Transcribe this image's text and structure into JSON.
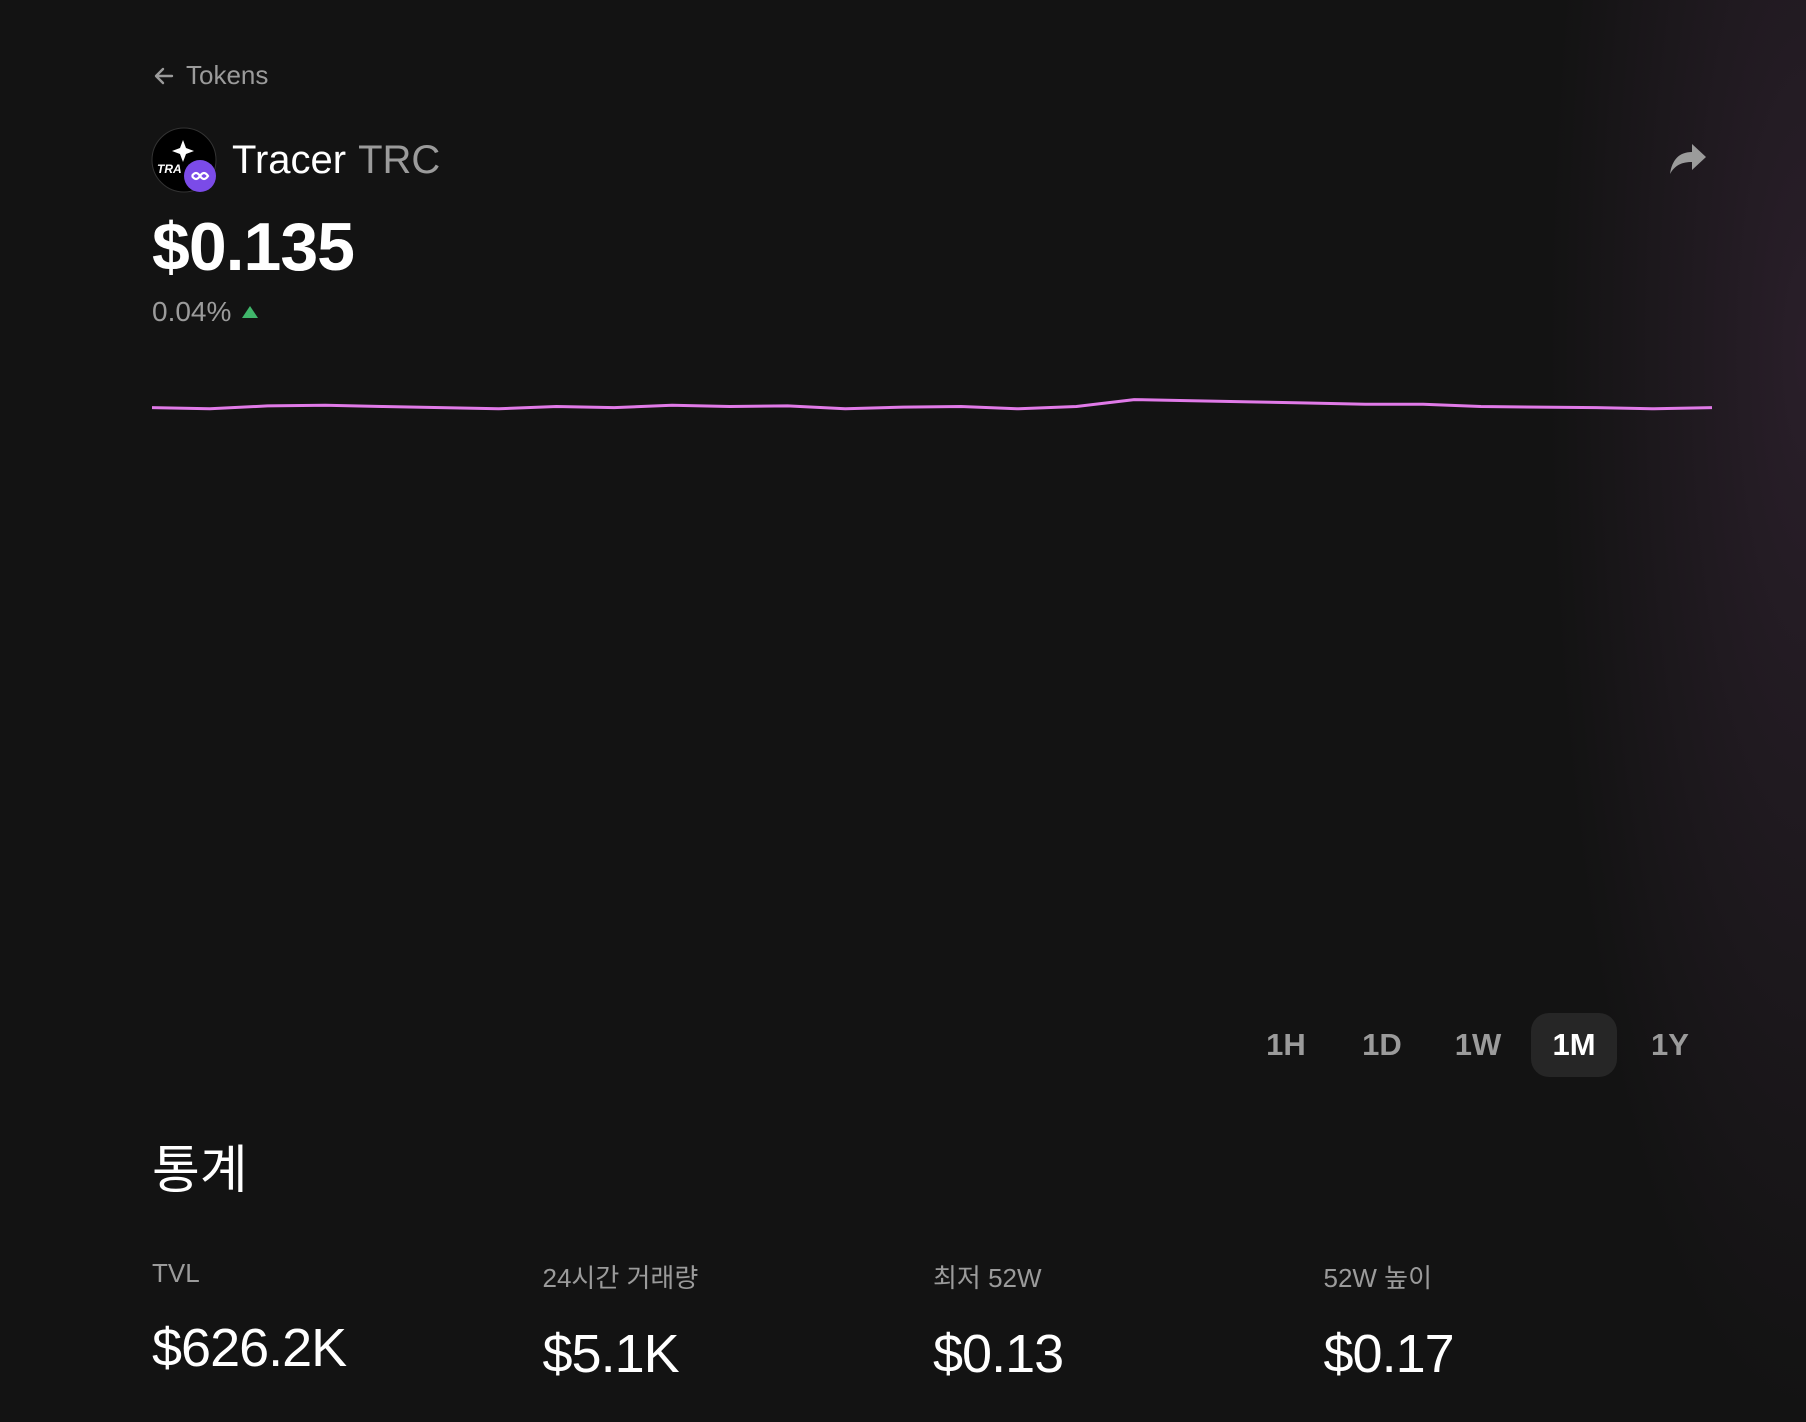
{
  "nav": {
    "back_label": "Tokens"
  },
  "token": {
    "name": "Tracer",
    "symbol": "TRC",
    "logo_text": "TRA",
    "price": "$0.135",
    "change": "0.04%"
  },
  "chart_data": {
    "type": "line",
    "color": "#e07ae8",
    "values": [
      0.135,
      0.1349,
      0.13515,
      0.1352,
      0.1351,
      0.135,
      0.1349,
      0.1351,
      0.135,
      0.1352,
      0.1351,
      0.13515,
      0.1349,
      0.13505,
      0.1351,
      0.1349,
      0.1351,
      0.1357,
      0.1356,
      0.1355,
      0.1354,
      0.1353,
      0.1353,
      0.1351,
      0.13505,
      0.135,
      0.1349,
      0.135
    ],
    "ylim": [
      0.085,
      0.14
    ]
  },
  "time_ranges": {
    "options": [
      "1H",
      "1D",
      "1W",
      "1M",
      "1Y"
    ],
    "active": "1M"
  },
  "stats": {
    "title": "통계",
    "items": [
      {
        "label": "TVL",
        "value": "$626.2K"
      },
      {
        "label": "24시간 거래량",
        "value": "$5.1K"
      },
      {
        "label": "최저 52W",
        "value": "$0.13"
      },
      {
        "label": "52W 높이",
        "value": "$0.17"
      }
    ]
  }
}
